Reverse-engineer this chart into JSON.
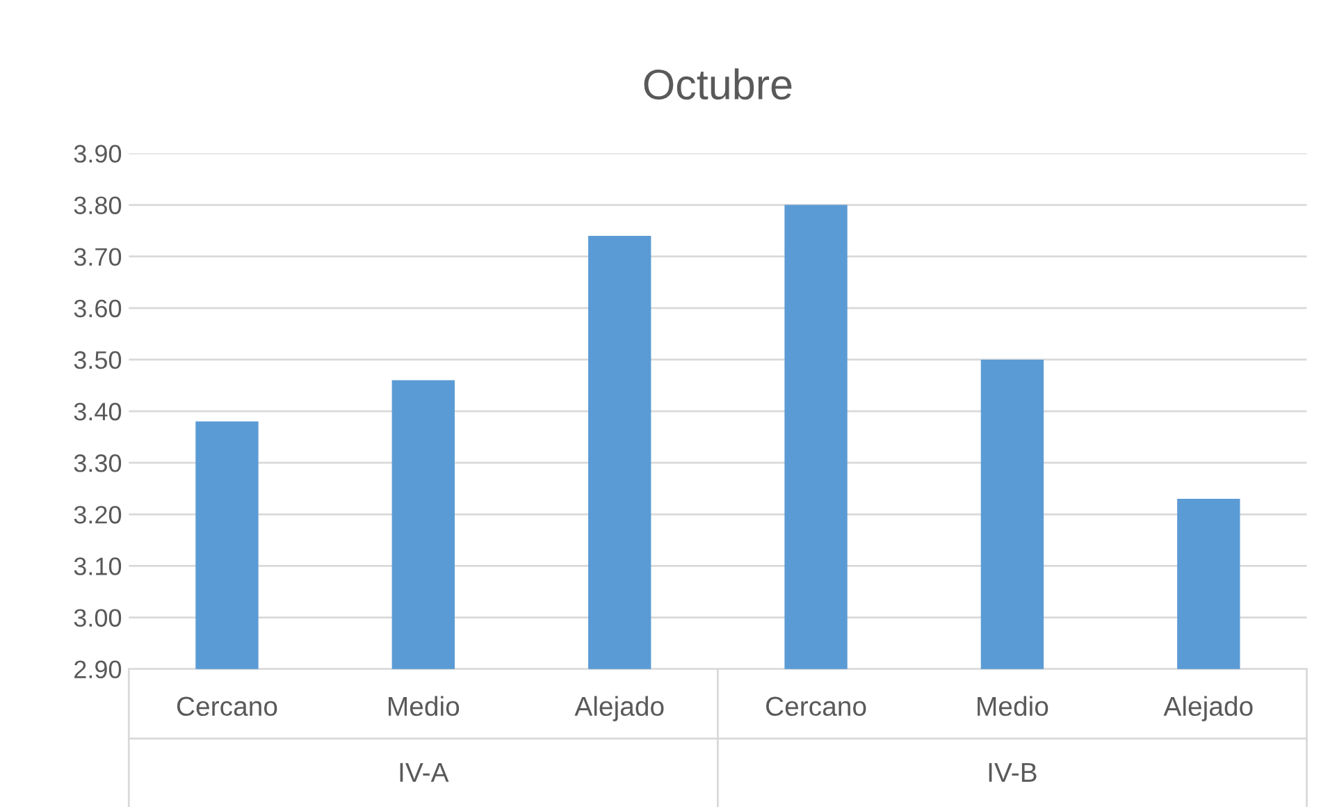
{
  "chart_data": {
    "type": "bar",
    "title": "Octubre",
    "categories": [
      "Cercano",
      "Medio",
      "Alejado",
      "Cercano",
      "Medio",
      "Alejado"
    ],
    "values": [
      3.38,
      3.46,
      3.74,
      3.8,
      3.5,
      3.23
    ],
    "color": "#5b9bd5",
    "annotations": [
      "IV-A",
      "IV-B"
    ],
    "ylim": [
      2.9,
      3.9
    ],
    "yticks": [
      {
        "value": 2.9,
        "label": "2.90"
      },
      {
        "value": 3.0,
        "label": "3.00"
      },
      {
        "value": 3.1,
        "label": "3.10"
      },
      {
        "value": 3.2,
        "label": "3.20"
      },
      {
        "value": 3.3,
        "label": "3.30"
      },
      {
        "value": 3.4,
        "label": "3.40"
      },
      {
        "value": 3.5,
        "label": "3.50"
      },
      {
        "value": 3.6,
        "label": "3.60"
      },
      {
        "value": 3.7,
        "label": "3.70"
      },
      {
        "value": 3.8,
        "label": "3.80"
      },
      {
        "value": 3.9,
        "label": "3.90"
      }
    ],
    "grid": "y",
    "legend": false
  }
}
